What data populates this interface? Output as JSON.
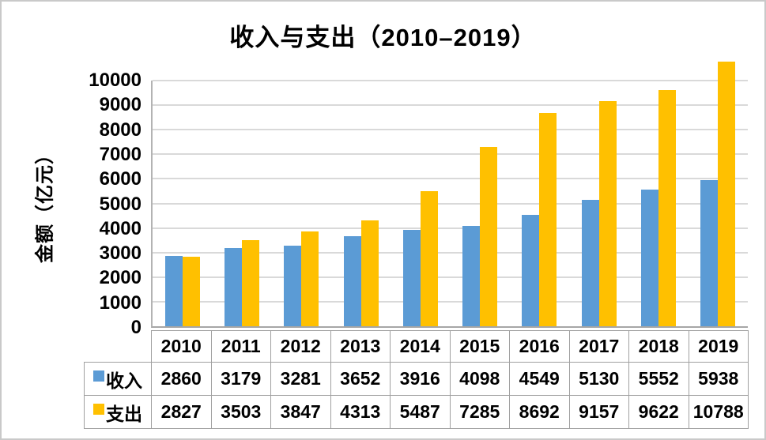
{
  "chart_data": {
    "type": "bar",
    "title": "收入与支出（2010–2019）",
    "ylabel": "金额（亿元）",
    "xlabel": "",
    "categories": [
      "2010",
      "2011",
      "2012",
      "2013",
      "2014",
      "2015",
      "2016",
      "2017",
      "2018",
      "2019"
    ],
    "series": [
      {
        "id": "income",
        "name": "收入",
        "color": "#5B9BD5",
        "values": [
          2860,
          3179,
          3281,
          3652,
          3916,
          4098,
          4549,
          5130,
          5552,
          5938
        ]
      },
      {
        "id": "expense",
        "name": "支出",
        "color": "#FFC000",
        "values": [
          2827,
          3503,
          3847,
          4313,
          5487,
          7285,
          8692,
          9157,
          9622,
          10788
        ]
      }
    ],
    "ylim": [
      0,
      10000
    ],
    "ytick_step": 1000,
    "grid": true,
    "gridline_color": "#D9D9D9",
    "legend_position": "data-table-left"
  }
}
